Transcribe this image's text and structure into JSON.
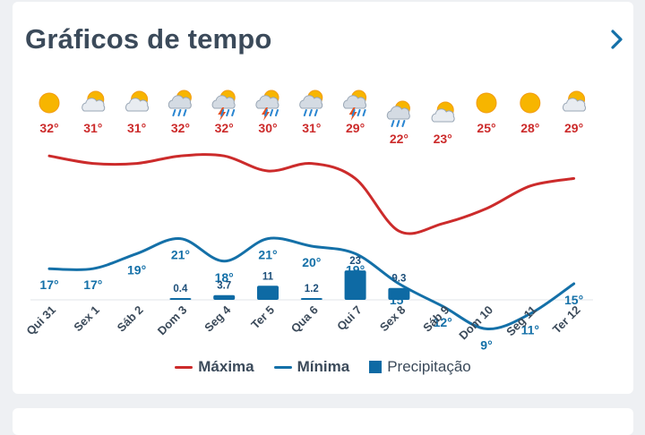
{
  "header": {
    "title": "Gráficos de tempo",
    "next_icon": "chevron-right-icon"
  },
  "colors": {
    "max": "#cc2b2b",
    "min": "#1470a8",
    "precip": "#0e6aa4",
    "title": "#3b4a5a"
  },
  "legend": {
    "max_label": "Máxima",
    "min_label": "Mínima",
    "precip_label": "Precipitação"
  },
  "chart_data": {
    "type": "line",
    "categories": [
      "Qui 31",
      "Sex 1",
      "Sáb 2",
      "Dom 3",
      "Seg 4",
      "Ter 5",
      "Qua 6",
      "Qui 7",
      "Sex 8",
      "Sáb 9",
      "Dom 10",
      "Seg 11",
      "Ter 12"
    ],
    "icons": [
      "sun-icon",
      "partly-cloudy-icon",
      "partly-cloudy-icon",
      "sun-rain-cloud-icon",
      "thunderstorm-sun-icon",
      "thunderstorm-sun-icon",
      "sun-rain-cloud-icon",
      "thunderstorm-sun-icon",
      "sun-rain-cloud-icon",
      "partly-cloudy-icon",
      "sun-icon",
      "sun-icon",
      "partly-cloudy-icon"
    ],
    "series": [
      {
        "name": "Máxima",
        "values": [
          32,
          31,
          31,
          32,
          32,
          30,
          31,
          29,
          22,
          23,
          25,
          28,
          29
        ]
      },
      {
        "name": "Mínima",
        "values": [
          17,
          17,
          19,
          21,
          18,
          21,
          20,
          19,
          15,
          12,
          9,
          11,
          15
        ]
      },
      {
        "name": "Precipitação",
        "values": [
          0,
          0,
          0,
          0.4,
          3.7,
          11,
          1.2,
          23,
          9.3,
          0,
          0,
          0,
          0
        ]
      }
    ],
    "precip_labels": [
      "",
      "",
      "",
      "0.4",
      "3.7",
      "11",
      "1.2",
      "23",
      "9.3",
      "",
      "",
      "",
      ""
    ],
    "temp_labels_max": [
      "32°",
      "31°",
      "31°",
      "32°",
      "32°",
      "30°",
      "31°",
      "29°",
      "22°",
      "23°",
      "25°",
      "28°",
      "29°"
    ],
    "temp_labels_min": [
      "17°",
      "17°",
      "19°",
      "21°",
      "18°",
      "21°",
      "20°",
      "19°",
      "15°",
      "12°",
      "9°",
      "11°",
      "15°"
    ]
  }
}
